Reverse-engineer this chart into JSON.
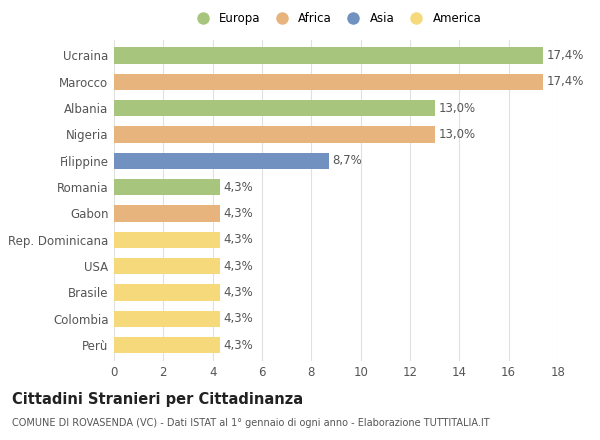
{
  "categories": [
    "Ucraina",
    "Marocco",
    "Albania",
    "Nigeria",
    "Filippine",
    "Romania",
    "Gabon",
    "Rep. Dominicana",
    "USA",
    "Brasile",
    "Colombia",
    "Perù"
  ],
  "values": [
    17.4,
    17.4,
    13.0,
    13.0,
    8.7,
    4.3,
    4.3,
    4.3,
    4.3,
    4.3,
    4.3,
    4.3
  ],
  "labels": [
    "17,4%",
    "17,4%",
    "13,0%",
    "13,0%",
    "8,7%",
    "4,3%",
    "4,3%",
    "4,3%",
    "4,3%",
    "4,3%",
    "4,3%",
    "4,3%"
  ],
  "colors": [
    "#a8c57e",
    "#e8b47e",
    "#a8c57e",
    "#e8b47e",
    "#7191c0",
    "#a8c57e",
    "#e8b47e",
    "#f5d97a",
    "#f5d97a",
    "#f5d97a",
    "#f5d97a",
    "#f5d97a"
  ],
  "legend_labels": [
    "Europa",
    "Africa",
    "Asia",
    "America"
  ],
  "legend_colors": [
    "#a8c57e",
    "#e8b47e",
    "#7191c0",
    "#f5d97a"
  ],
  "title": "Cittadini Stranieri per Cittadinanza",
  "subtitle": "COMUNE DI ROVASENDA (VC) - Dati ISTAT al 1° gennaio di ogni anno - Elaborazione TUTTITALIA.IT",
  "xlim": [
    0,
    18
  ],
  "xticks": [
    0,
    2,
    4,
    6,
    8,
    10,
    12,
    14,
    16,
    18
  ],
  "background_color": "#ffffff",
  "grid_color": "#e0e0e0",
  "bar_height": 0.62,
  "label_fontsize": 8.5,
  "tick_fontsize": 8.5,
  "title_fontsize": 10.5,
  "subtitle_fontsize": 7.0
}
